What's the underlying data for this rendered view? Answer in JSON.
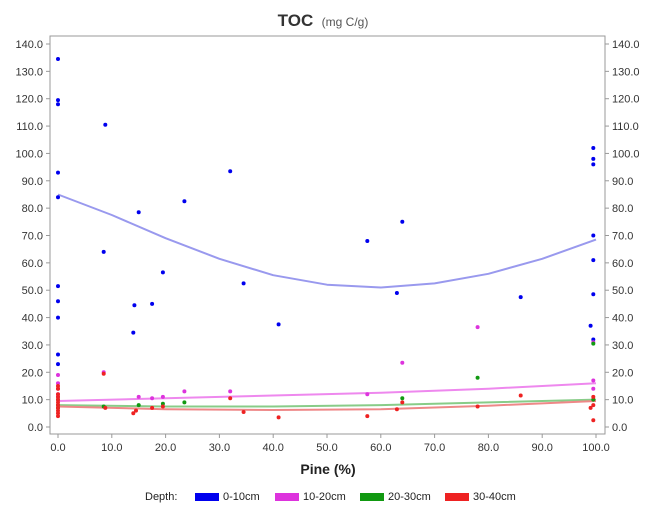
{
  "chart_data": {
    "type": "scatter",
    "title": "TOC",
    "title_unit": "(mg C/g)",
    "xlabel": "Pine (%)",
    "ylabel": "",
    "xlim": [
      0,
      100
    ],
    "ylim": [
      0,
      140
    ],
    "x_ticks": [
      "0.0",
      "10.0",
      "20.0",
      "30.0",
      "40.0",
      "50.0",
      "60.0",
      "70.0",
      "80.0",
      "90.0",
      "100.0"
    ],
    "y_ticks": [
      "0.0",
      "10.0",
      "20.0",
      "30.0",
      "40.0",
      "50.0",
      "60.0",
      "70.0",
      "80.0",
      "90.0",
      "100.0",
      "110.0",
      "120.0",
      "130.0",
      "140.0"
    ],
    "grid": false,
    "right_axis": true,
    "legend": {
      "title": "Depth:",
      "placement": "bottom"
    },
    "series": [
      {
        "name": "0-10cm",
        "color": "#0000ee",
        "fit_color": "#9999ee",
        "points": [
          [
            0,
            134.5
          ],
          [
            0,
            119.5
          ],
          [
            0,
            118
          ],
          [
            0,
            93
          ],
          [
            0,
            84
          ],
          [
            0,
            51.5
          ],
          [
            0,
            46
          ],
          [
            0,
            40
          ],
          [
            0,
            26.5
          ],
          [
            0,
            23
          ],
          [
            8.5,
            64
          ],
          [
            8.8,
            110.5
          ],
          [
            14,
            34.5
          ],
          [
            14.2,
            44.5
          ],
          [
            15,
            78.5
          ],
          [
            17.5,
            45
          ],
          [
            19.5,
            56.5
          ],
          [
            23.5,
            82.5
          ],
          [
            32,
            93.5
          ],
          [
            34.5,
            52.5
          ],
          [
            41,
            37.5
          ],
          [
            57.5,
            68
          ],
          [
            63,
            49
          ],
          [
            64,
            75
          ],
          [
            86,
            47.5
          ],
          [
            99,
            37
          ],
          [
            99.5,
            102
          ],
          [
            99.5,
            98
          ],
          [
            99.5,
            96
          ],
          [
            99.5,
            70
          ],
          [
            99.5,
            61
          ],
          [
            99.5,
            48.5
          ],
          [
            99.5,
            32
          ]
        ],
        "fit": [
          [
            0,
            85
          ],
          [
            10,
            77.5
          ],
          [
            20,
            69
          ],
          [
            30,
            61.5
          ],
          [
            40,
            55.5
          ],
          [
            50,
            52
          ],
          [
            60,
            51
          ],
          [
            70,
            52.5
          ],
          [
            80,
            56
          ],
          [
            90,
            61.5
          ],
          [
            100,
            68.5
          ]
        ]
      },
      {
        "name": "10-20cm",
        "color": "#dd33dd",
        "fit_color": "#ee88ee",
        "points": [
          [
            0,
            19
          ],
          [
            0,
            16
          ],
          [
            0,
            14
          ],
          [
            0,
            12
          ],
          [
            0,
            11
          ],
          [
            8.5,
            20
          ],
          [
            15,
            11
          ],
          [
            17.5,
            10.5
          ],
          [
            19.5,
            11
          ],
          [
            23.5,
            13
          ],
          [
            32,
            13
          ],
          [
            57.5,
            12
          ],
          [
            64,
            23.5
          ],
          [
            78,
            36.5
          ],
          [
            99.5,
            31
          ],
          [
            99.5,
            17
          ],
          [
            99.5,
            14
          ]
        ],
        "fit": [
          [
            0,
            9.5
          ],
          [
            20,
            10.5
          ],
          [
            40,
            11.5
          ],
          [
            60,
            12.5
          ],
          [
            80,
            14
          ],
          [
            100,
            16
          ]
        ]
      },
      {
        "name": "20-30cm",
        "color": "#119911",
        "fit_color": "#88cc88",
        "points": [
          [
            0,
            10
          ],
          [
            0,
            8
          ],
          [
            0,
            7
          ],
          [
            8.5,
            7.5
          ],
          [
            15,
            8
          ],
          [
            19.5,
            8.5
          ],
          [
            23.5,
            9
          ],
          [
            64,
            10.5
          ],
          [
            78,
            18
          ],
          [
            99.5,
            30.5
          ],
          [
            99.5,
            10
          ]
        ],
        "fit": [
          [
            0,
            8
          ],
          [
            20,
            7.5
          ],
          [
            40,
            7.5
          ],
          [
            60,
            8
          ],
          [
            80,
            9
          ],
          [
            100,
            10
          ]
        ]
      },
      {
        "name": "30-40cm",
        "color": "#ee2222",
        "fit_color": "#ee8888",
        "points": [
          [
            0,
            15
          ],
          [
            0,
            14
          ],
          [
            0,
            12
          ],
          [
            0,
            11
          ],
          [
            0,
            10
          ],
          [
            0,
            9
          ],
          [
            0,
            8
          ],
          [
            0,
            7
          ],
          [
            0,
            6
          ],
          [
            0,
            5
          ],
          [
            0,
            4
          ],
          [
            8.5,
            19.5
          ],
          [
            8.8,
            7
          ],
          [
            14,
            5
          ],
          [
            14.5,
            6
          ],
          [
            17.5,
            7
          ],
          [
            19.5,
            7.5
          ],
          [
            32,
            10.5
          ],
          [
            34.5,
            5.5
          ],
          [
            41,
            3.5
          ],
          [
            57.5,
            4
          ],
          [
            63,
            6.5
          ],
          [
            64,
            9
          ],
          [
            78,
            7.5
          ],
          [
            86,
            11.5
          ],
          [
            99,
            7
          ],
          [
            99.5,
            11
          ],
          [
            99.5,
            8
          ],
          [
            99.5,
            2.5
          ]
        ],
        "fit": [
          [
            0,
            7.5
          ],
          [
            20,
            6.5
          ],
          [
            40,
            6.2
          ],
          [
            60,
            6.5
          ],
          [
            80,
            7.8
          ],
          [
            100,
            9.5
          ]
        ]
      }
    ]
  }
}
